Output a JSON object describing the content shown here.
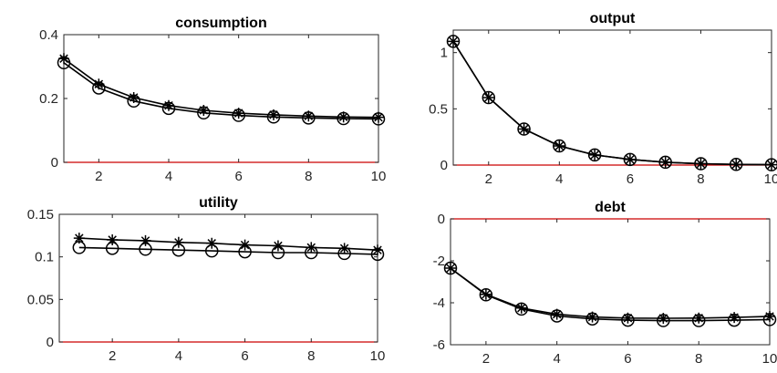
{
  "chart_data": [
    {
      "type": "line",
      "title": "consumption",
      "x": [
        1,
        2,
        3,
        4,
        5,
        6,
        7,
        8,
        9,
        10
      ],
      "xlim": [
        1,
        10
      ],
      "ylim": [
        0,
        0.4
      ],
      "xticks": [
        2,
        4,
        6,
        8,
        10
      ],
      "yticks": [
        0,
        0.2,
        0.4
      ],
      "xtick_labels": [
        "2",
        "4",
        "6",
        "8",
        "10"
      ],
      "ytick_labels": [
        "0",
        "0.2",
        "0.4"
      ],
      "grid": false,
      "zero_line_color": "#cc0000",
      "series": [
        {
          "marker": "asterisk",
          "values": [
            0.325,
            0.245,
            0.203,
            0.178,
            0.163,
            0.154,
            0.149,
            0.145,
            0.142,
            0.141
          ]
        },
        {
          "marker": "circle",
          "values": [
            0.312,
            0.233,
            0.192,
            0.169,
            0.155,
            0.147,
            0.142,
            0.139,
            0.137,
            0.136
          ]
        }
      ]
    },
    {
      "type": "line",
      "title": "output",
      "x": [
        1,
        2,
        3,
        4,
        5,
        6,
        7,
        8,
        9,
        10
      ],
      "xlim": [
        1,
        10
      ],
      "ylim": [
        0,
        1.2
      ],
      "xticks": [
        2,
        4,
        6,
        8,
        10
      ],
      "yticks": [
        0,
        0.5,
        1
      ],
      "xtick_labels": [
        "2",
        "4",
        "6",
        "8",
        "10"
      ],
      "ytick_labels": [
        "0",
        "0.5",
        "1"
      ],
      "grid": false,
      "zero_line_color": "#cc0000",
      "series": [
        {
          "marker": "asterisk",
          "values": [
            1.1,
            0.6,
            0.32,
            0.17,
            0.09,
            0.05,
            0.025,
            0.012,
            0.006,
            0.003
          ]
        },
        {
          "marker": "circle",
          "values": [
            1.1,
            0.6,
            0.32,
            0.17,
            0.09,
            0.05,
            0.025,
            0.012,
            0.006,
            0.003
          ]
        }
      ]
    },
    {
      "type": "line",
      "title": "utility",
      "x": [
        1,
        2,
        3,
        4,
        5,
        6,
        7,
        8,
        9,
        10
      ],
      "xlim": [
        0.4,
        10
      ],
      "ylim": [
        0,
        0.15
      ],
      "xticks": [
        2,
        4,
        6,
        8,
        10
      ],
      "yticks": [
        0,
        0.05,
        0.1,
        0.15
      ],
      "xtick_labels": [
        "2",
        "4",
        "6",
        "8",
        "10"
      ],
      "ytick_labels": [
        "0",
        "0.05",
        "0.1",
        "0.15"
      ],
      "grid": false,
      "zero_line_color": "#cc0000",
      "series": [
        {
          "marker": "asterisk",
          "values": [
            0.122,
            0.12,
            0.119,
            0.117,
            0.116,
            0.114,
            0.113,
            0.111,
            0.11,
            0.108
          ]
        },
        {
          "marker": "circle",
          "values": [
            0.111,
            0.11,
            0.109,
            0.108,
            0.107,
            0.106,
            0.105,
            0.105,
            0.104,
            0.103
          ]
        }
      ]
    },
    {
      "type": "line",
      "title": "debt",
      "x": [
        1,
        2,
        3,
        4,
        5,
        6,
        7,
        8,
        9,
        10
      ],
      "xlim": [
        1,
        10
      ],
      "ylim": [
        -6,
        0
      ],
      "xticks": [
        2,
        4,
        6,
        8,
        10
      ],
      "yticks": [
        -6,
        -4,
        -2,
        0
      ],
      "xtick_labels": [
        "2",
        "4",
        "6",
        "8",
        "10"
      ],
      "ytick_labels": [
        "-6",
        "-4",
        "-2",
        "0"
      ],
      "grid": false,
      "zero_line_color": "#cc0000",
      "series": [
        {
          "marker": "asterisk",
          "values": [
            -2.35,
            -3.6,
            -4.25,
            -4.55,
            -4.68,
            -4.73,
            -4.74,
            -4.73,
            -4.7,
            -4.65
          ]
        },
        {
          "marker": "circle",
          "values": [
            -2.35,
            -3.62,
            -4.3,
            -4.63,
            -4.77,
            -4.83,
            -4.85,
            -4.85,
            -4.83,
            -4.8
          ]
        }
      ]
    }
  ]
}
